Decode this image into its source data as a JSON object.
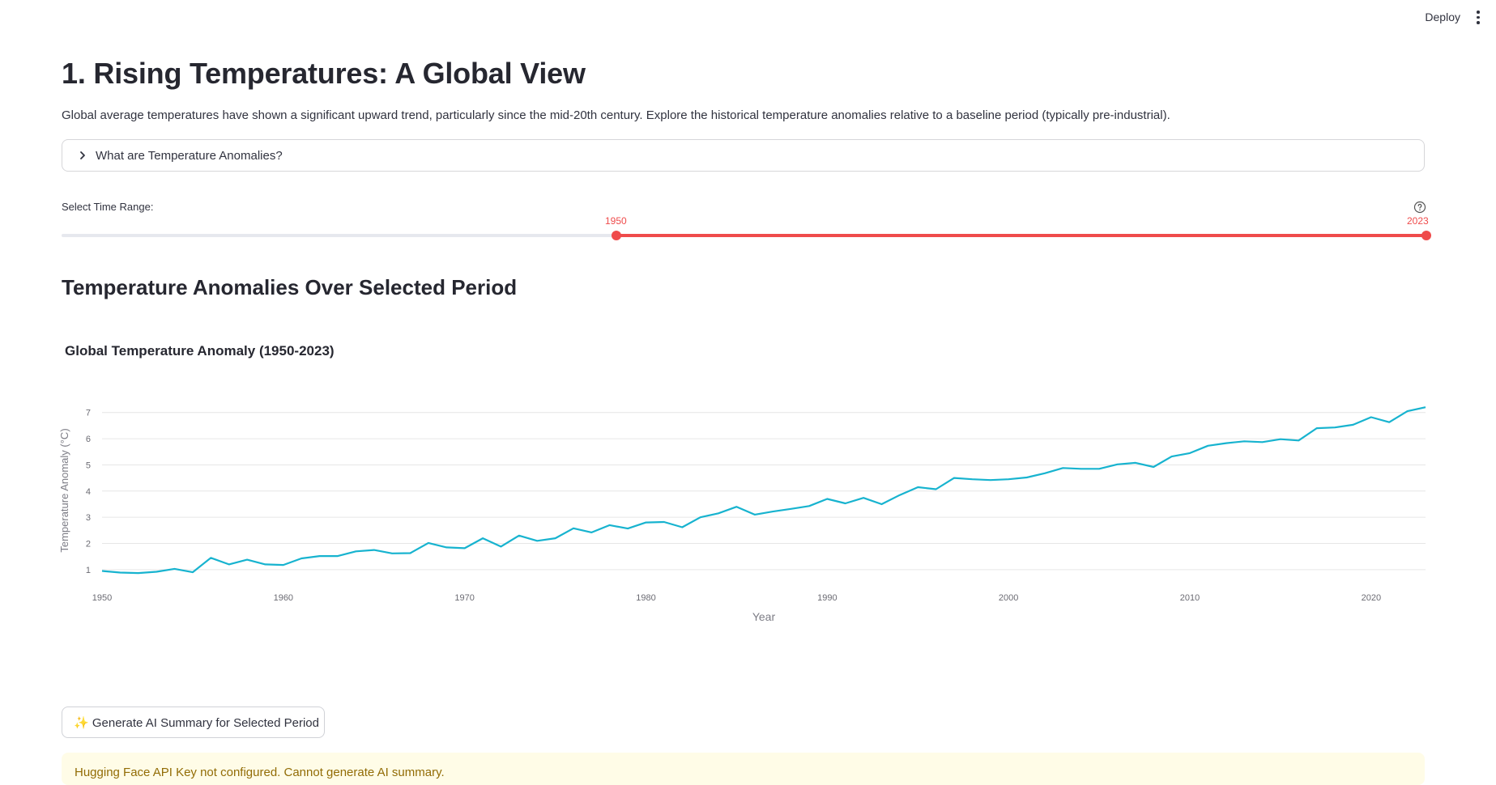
{
  "header": {
    "deploy_label": "Deploy"
  },
  "page": {
    "title": "1. Rising Temperatures: A Global View",
    "intro": "Global average temperatures have shown a significant upward trend, particularly since the mid-20th century. Explore the historical temperature anomalies relative to a baseline period (typically pre-industrial)."
  },
  "expander": {
    "label": "What are Temperature Anomalies?"
  },
  "slider": {
    "label": "Select Time Range:",
    "min": 1850,
    "max": 2023,
    "value_low": 1950,
    "value_high": 2023,
    "low_label": "1950",
    "high_label": "2023",
    "accent": "#ef4b4b"
  },
  "section": {
    "title": "Temperature Anomalies Over Selected Period"
  },
  "chart_data": {
    "type": "line",
    "title": "Global Temperature Anomaly (1950-2023)",
    "xlabel": "Year",
    "ylabel": "Temperature Anomaly (°C)",
    "xlim": [
      1950,
      2023
    ],
    "ylim": [
      0.75,
      7.3
    ],
    "xticks": [
      1950,
      1960,
      1970,
      1980,
      1990,
      2000,
      2010,
      2020
    ],
    "yticks": [
      1,
      2,
      3,
      4,
      5,
      6,
      7
    ],
    "grid": true,
    "line_color": "#17b3cf",
    "x": [
      1950,
      1951,
      1952,
      1953,
      1954,
      1955,
      1956,
      1957,
      1958,
      1959,
      1960,
      1961,
      1962,
      1963,
      1964,
      1965,
      1966,
      1967,
      1968,
      1969,
      1970,
      1971,
      1972,
      1973,
      1974,
      1975,
      1976,
      1977,
      1978,
      1979,
      1980,
      1981,
      1982,
      1983,
      1984,
      1985,
      1986,
      1987,
      1988,
      1989,
      1990,
      1991,
      1992,
      1993,
      1994,
      1995,
      1996,
      1997,
      1998,
      1999,
      2000,
      2001,
      2002,
      2003,
      2004,
      2005,
      2006,
      2007,
      2008,
      2009,
      2010,
      2011,
      2012,
      2013,
      2014,
      2015,
      2016,
      2017,
      2018,
      2019,
      2020,
      2021,
      2022,
      2023
    ],
    "values": [
      0.95,
      0.89,
      0.87,
      0.92,
      1.03,
      0.9,
      1.45,
      1.2,
      1.38,
      1.2,
      1.18,
      1.43,
      1.52,
      1.52,
      1.7,
      1.75,
      1.62,
      1.63,
      2.02,
      1.85,
      1.82,
      2.2,
      1.88,
      2.3,
      2.1,
      2.2,
      2.58,
      2.42,
      2.7,
      2.57,
      2.8,
      2.82,
      2.62,
      3.0,
      3.15,
      3.4,
      3.1,
      3.22,
      3.32,
      3.43,
      3.7,
      3.53,
      3.74,
      3.5,
      3.85,
      4.15,
      4.07,
      4.5,
      4.45,
      4.42,
      4.45,
      4.52,
      4.68,
      4.88,
      4.85,
      4.85,
      5.02,
      5.08,
      4.92,
      5.32,
      5.45,
      5.73,
      5.83,
      5.9,
      5.87,
      5.98,
      5.93,
      6.4,
      6.43,
      6.53,
      6.82,
      6.63,
      7.05,
      7.2
    ]
  },
  "buttons": {
    "ai_summary_label": "✨ Generate AI Summary for Selected Period"
  },
  "alert": {
    "text": "Hugging Face API Key not configured. Cannot generate AI summary."
  }
}
